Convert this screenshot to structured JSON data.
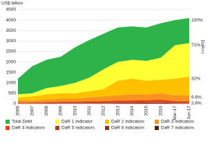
{
  "chart_data": {
    "type": "stacked_area",
    "y_axis_label": "US$ billion",
    "categories": [
      "2006",
      "2007",
      "2008",
      "2009",
      "2010",
      "2011",
      "2012",
      "2013",
      "2014",
      "2015",
      "2016",
      "Mar-17",
      "Jun-17"
    ],
    "series": [
      {
        "name": "Total Debt",
        "color": "#2db34a",
        "values": [
          750,
          1300,
          1350,
          1400,
          1700,
          1800,
          1700,
          1650,
          1600,
          1600,
          1650,
          1200,
          1200
        ]
      },
      {
        "name": "DaR 1 indicator",
        "color": "#ffff33",
        "values": [
          150,
          150,
          300,
          350,
          500,
          650,
          950,
          900,
          900,
          950,
          1050,
          1600,
          1600
        ]
      },
      {
        "name": "DaR 2 indicators",
        "color": "#ffc000",
        "values": [
          150,
          200,
          250,
          250,
          250,
          300,
          350,
          700,
          750,
          650,
          650,
          800,
          900
        ]
      },
      {
        "name": "DaR 3 indicators",
        "color": "#f7941d",
        "values": [
          100,
          90,
          120,
          150,
          150,
          180,
          220,
          250,
          290,
          280,
          300,
          270,
          285
        ]
      },
      {
        "name": "DaR 4 indicators",
        "color": "#e2421d",
        "values": [
          30,
          35,
          50,
          60,
          60,
          70,
          80,
          90,
          100,
          100,
          120,
          80,
          75
        ]
      },
      {
        "name": "DaR 5 indicators",
        "color": "#b8391e",
        "values": [
          10,
          15,
          15,
          20,
          20,
          25,
          25,
          30,
          30,
          35,
          40,
          25,
          20
        ]
      },
      {
        "name": "DaR 6 indicators",
        "color": "#8a3316",
        "values": [
          5,
          5,
          10,
          10,
          10,
          15,
          15,
          15,
          15,
          20,
          20,
          15,
          10
        ]
      },
      {
        "name": "DaR 7 indicators",
        "color": "#4a2412",
        "values": [
          5,
          5,
          5,
          10,
          10,
          10,
          10,
          15,
          15,
          15,
          20,
          10,
          10
        ]
      }
    ],
    "ylim": [
      0,
      4500
    ],
    "yticks": [
      0,
      500,
      1000,
      1500,
      2000,
      2500,
      3000,
      3500,
      4000,
      4500
    ],
    "grid": true,
    "annotations": [
      "100%",
      "71%",
      "32%",
      "9.6%",
      "2.8%"
    ],
    "annotation_title": "DaR>="
  }
}
